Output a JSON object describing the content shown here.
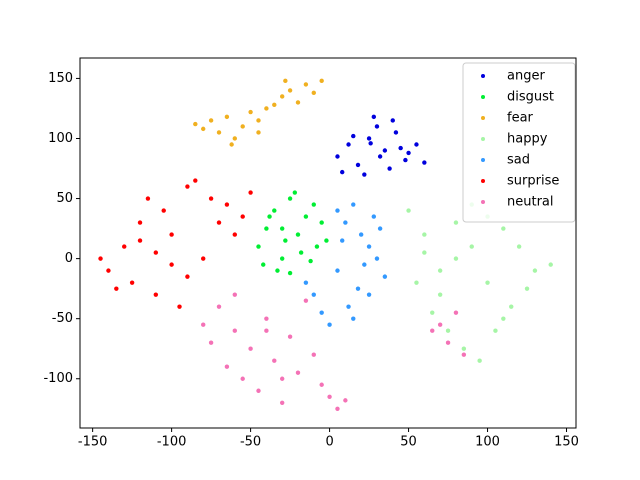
{
  "chart_data": {
    "type": "scatter",
    "xlim": [
      -158,
      156
    ],
    "ylim": [
      -141,
      167
    ],
    "xticks": [
      -150,
      -100,
      -50,
      0,
      50,
      100,
      150
    ],
    "yticks": [
      -100,
      -50,
      0,
      50,
      100,
      150
    ],
    "legend": "upper right",
    "series": [
      {
        "name": "anger",
        "color": "#0000dd",
        "x": [
          5,
          12,
          18,
          25,
          30,
          35,
          42,
          48,
          55,
          60,
          22,
          28,
          38,
          45,
          15,
          32,
          50,
          8,
          40,
          26
        ],
        "y": [
          85,
          95,
          78,
          100,
          110,
          90,
          105,
          82,
          95,
          80,
          70,
          118,
          75,
          92,
          102,
          85,
          88,
          72,
          115,
          96
        ]
      },
      {
        "name": "disgust",
        "color": "#00ee33",
        "x": [
          -45,
          -40,
          -35,
          -30,
          -25,
          -20,
          -15,
          -10,
          -5,
          -2,
          -42,
          -33,
          -28,
          -18,
          -12,
          -38,
          -22,
          -8,
          -30,
          -25
        ],
        "y": [
          10,
          25,
          40,
          0,
          50,
          20,
          35,
          45,
          30,
          15,
          -5,
          -10,
          15,
          5,
          -2,
          35,
          55,
          10,
          25,
          -12
        ]
      },
      {
        "name": "fear",
        "color": "#f0b020",
        "x": [
          -85,
          -80,
          -75,
          -70,
          -65,
          -60,
          -55,
          -50,
          -45,
          -40,
          -35,
          -30,
          -25,
          -20,
          -15,
          -10,
          -5,
          -62,
          -45,
          -28
        ],
        "y": [
          112,
          108,
          115,
          105,
          118,
          100,
          110,
          122,
          115,
          125,
          128,
          135,
          140,
          130,
          145,
          138,
          148,
          95,
          105,
          148
        ]
      },
      {
        "name": "happy",
        "color": "#a6f5a6",
        "x": [
          50,
          60,
          70,
          80,
          90,
          100,
          110,
          120,
          130,
          140,
          55,
          65,
          75,
          85,
          95,
          105,
          115,
          125,
          80,
          100,
          110,
          90,
          70,
          60
        ],
        "y": [
          40,
          20,
          -10,
          30,
          45,
          35,
          25,
          10,
          -10,
          -5,
          -20,
          -45,
          -60,
          -75,
          -85,
          -60,
          -40,
          -25,
          0,
          -20,
          -50,
          10,
          -30,
          5
        ]
      },
      {
        "name": "sad",
        "color": "#3399ff",
        "x": [
          5,
          10,
          15,
          20,
          25,
          30,
          35,
          -10,
          -5,
          0,
          12,
          18,
          22,
          28,
          8,
          15,
          -15,
          5,
          25,
          32
        ],
        "y": [
          40,
          30,
          45,
          20,
          10,
          0,
          -15,
          -30,
          -45,
          -55,
          -40,
          -25,
          -5,
          35,
          15,
          -50,
          -20,
          -10,
          -30,
          25
        ]
      },
      {
        "name": "surprise",
        "color": "#ff0000",
        "x": [
          -145,
          -140,
          -130,
          -125,
          -120,
          -115,
          -110,
          -105,
          -100,
          -95,
          -90,
          -85,
          -80,
          -75,
          -70,
          -65,
          -60,
          -55,
          -50,
          -135,
          -110,
          -90,
          -120,
          -100
        ],
        "y": [
          0,
          -10,
          10,
          -20,
          30,
          50,
          -30,
          40,
          20,
          -40,
          60,
          65,
          0,
          50,
          30,
          45,
          20,
          35,
          55,
          -25,
          5,
          -15,
          15,
          -5
        ]
      },
      {
        "name": "neutral",
        "color": "#f472b6",
        "x": [
          -80,
          -75,
          -70,
          -65,
          -60,
          -55,
          -50,
          -45,
          -40,
          -35,
          -30,
          -25,
          -20,
          -15,
          -10,
          -5,
          0,
          5,
          10,
          -60,
          -40,
          -30,
          70,
          75,
          80,
          85,
          65
        ],
        "y": [
          -55,
          -70,
          -40,
          -90,
          -60,
          -100,
          -75,
          -110,
          -50,
          -85,
          -120,
          -65,
          -95,
          -35,
          -80,
          -105,
          -115,
          -125,
          -118,
          -30,
          -60,
          -100,
          -55,
          -70,
          -45,
          -80,
          -60
        ]
      }
    ]
  }
}
